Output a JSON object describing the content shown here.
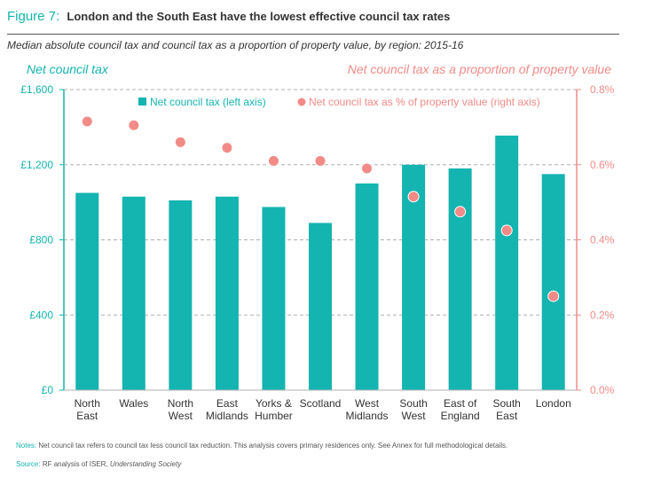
{
  "figure": {
    "number": "Figure 7:",
    "title": "London and the South East have the lowest effective council tax rates",
    "subtitle": "Median absolute council tax and council tax as a proportion of property value, by region: 2015-16",
    "left_axis_title": "Net council tax",
    "right_axis_title": "Net council tax as a proportion of property value",
    "notes_label": "Notes:",
    "notes_text": "Net council tax refers to council tax less council tax reduction. This analysis covers primary residences only. See Annex for full methodological details.",
    "source_label": "Source:",
    "source_text": "RF analysis of ISER,",
    "source_italic": "Understanding Society"
  },
  "colors": {
    "bar": "#14b4b0",
    "dot": "#f28b87",
    "grid": "#b0b0b0"
  },
  "chart_data": {
    "type": "bar",
    "categories": [
      [
        "North",
        "East"
      ],
      [
        "Wales"
      ],
      [
        "North",
        "West"
      ],
      [
        "East",
        "Midlands"
      ],
      [
        "Yorks &",
        "Humber"
      ],
      [
        "Scotland"
      ],
      [
        "West",
        "Midlands"
      ],
      [
        "South",
        "West"
      ],
      [
        "East of",
        "England"
      ],
      [
        "South",
        "East"
      ],
      [
        "London"
      ]
    ],
    "series": [
      {
        "name": "Net council tax (left axis)",
        "axis": "left",
        "kind": "bar",
        "values": [
          1050,
          1030,
          1010,
          1030,
          975,
          890,
          1100,
          1200,
          1180,
          1355,
          1150
        ]
      },
      {
        "name": "Net council tax as % of property value (right axis)",
        "axis": "right",
        "kind": "scatter",
        "values": [
          0.715,
          0.705,
          0.66,
          0.645,
          0.61,
          0.61,
          0.59,
          0.515,
          0.475,
          0.425,
          0.25
        ]
      }
    ],
    "left_axis": {
      "ylim": [
        0,
        1600
      ],
      "ticks": [
        0,
        400,
        800,
        1200,
        1600
      ],
      "tick_labels": [
        "£0",
        "£400",
        "£800",
        "£1,200",
        "£1,600"
      ]
    },
    "right_axis": {
      "ylim": [
        0,
        0.8
      ],
      "ticks": [
        0,
        0.2,
        0.4,
        0.6,
        0.8
      ],
      "tick_labels": [
        "0.0%",
        "0.2%",
        "0.4%",
        "0.6%",
        "0.8%"
      ]
    },
    "grid": true,
    "legend": "top"
  }
}
